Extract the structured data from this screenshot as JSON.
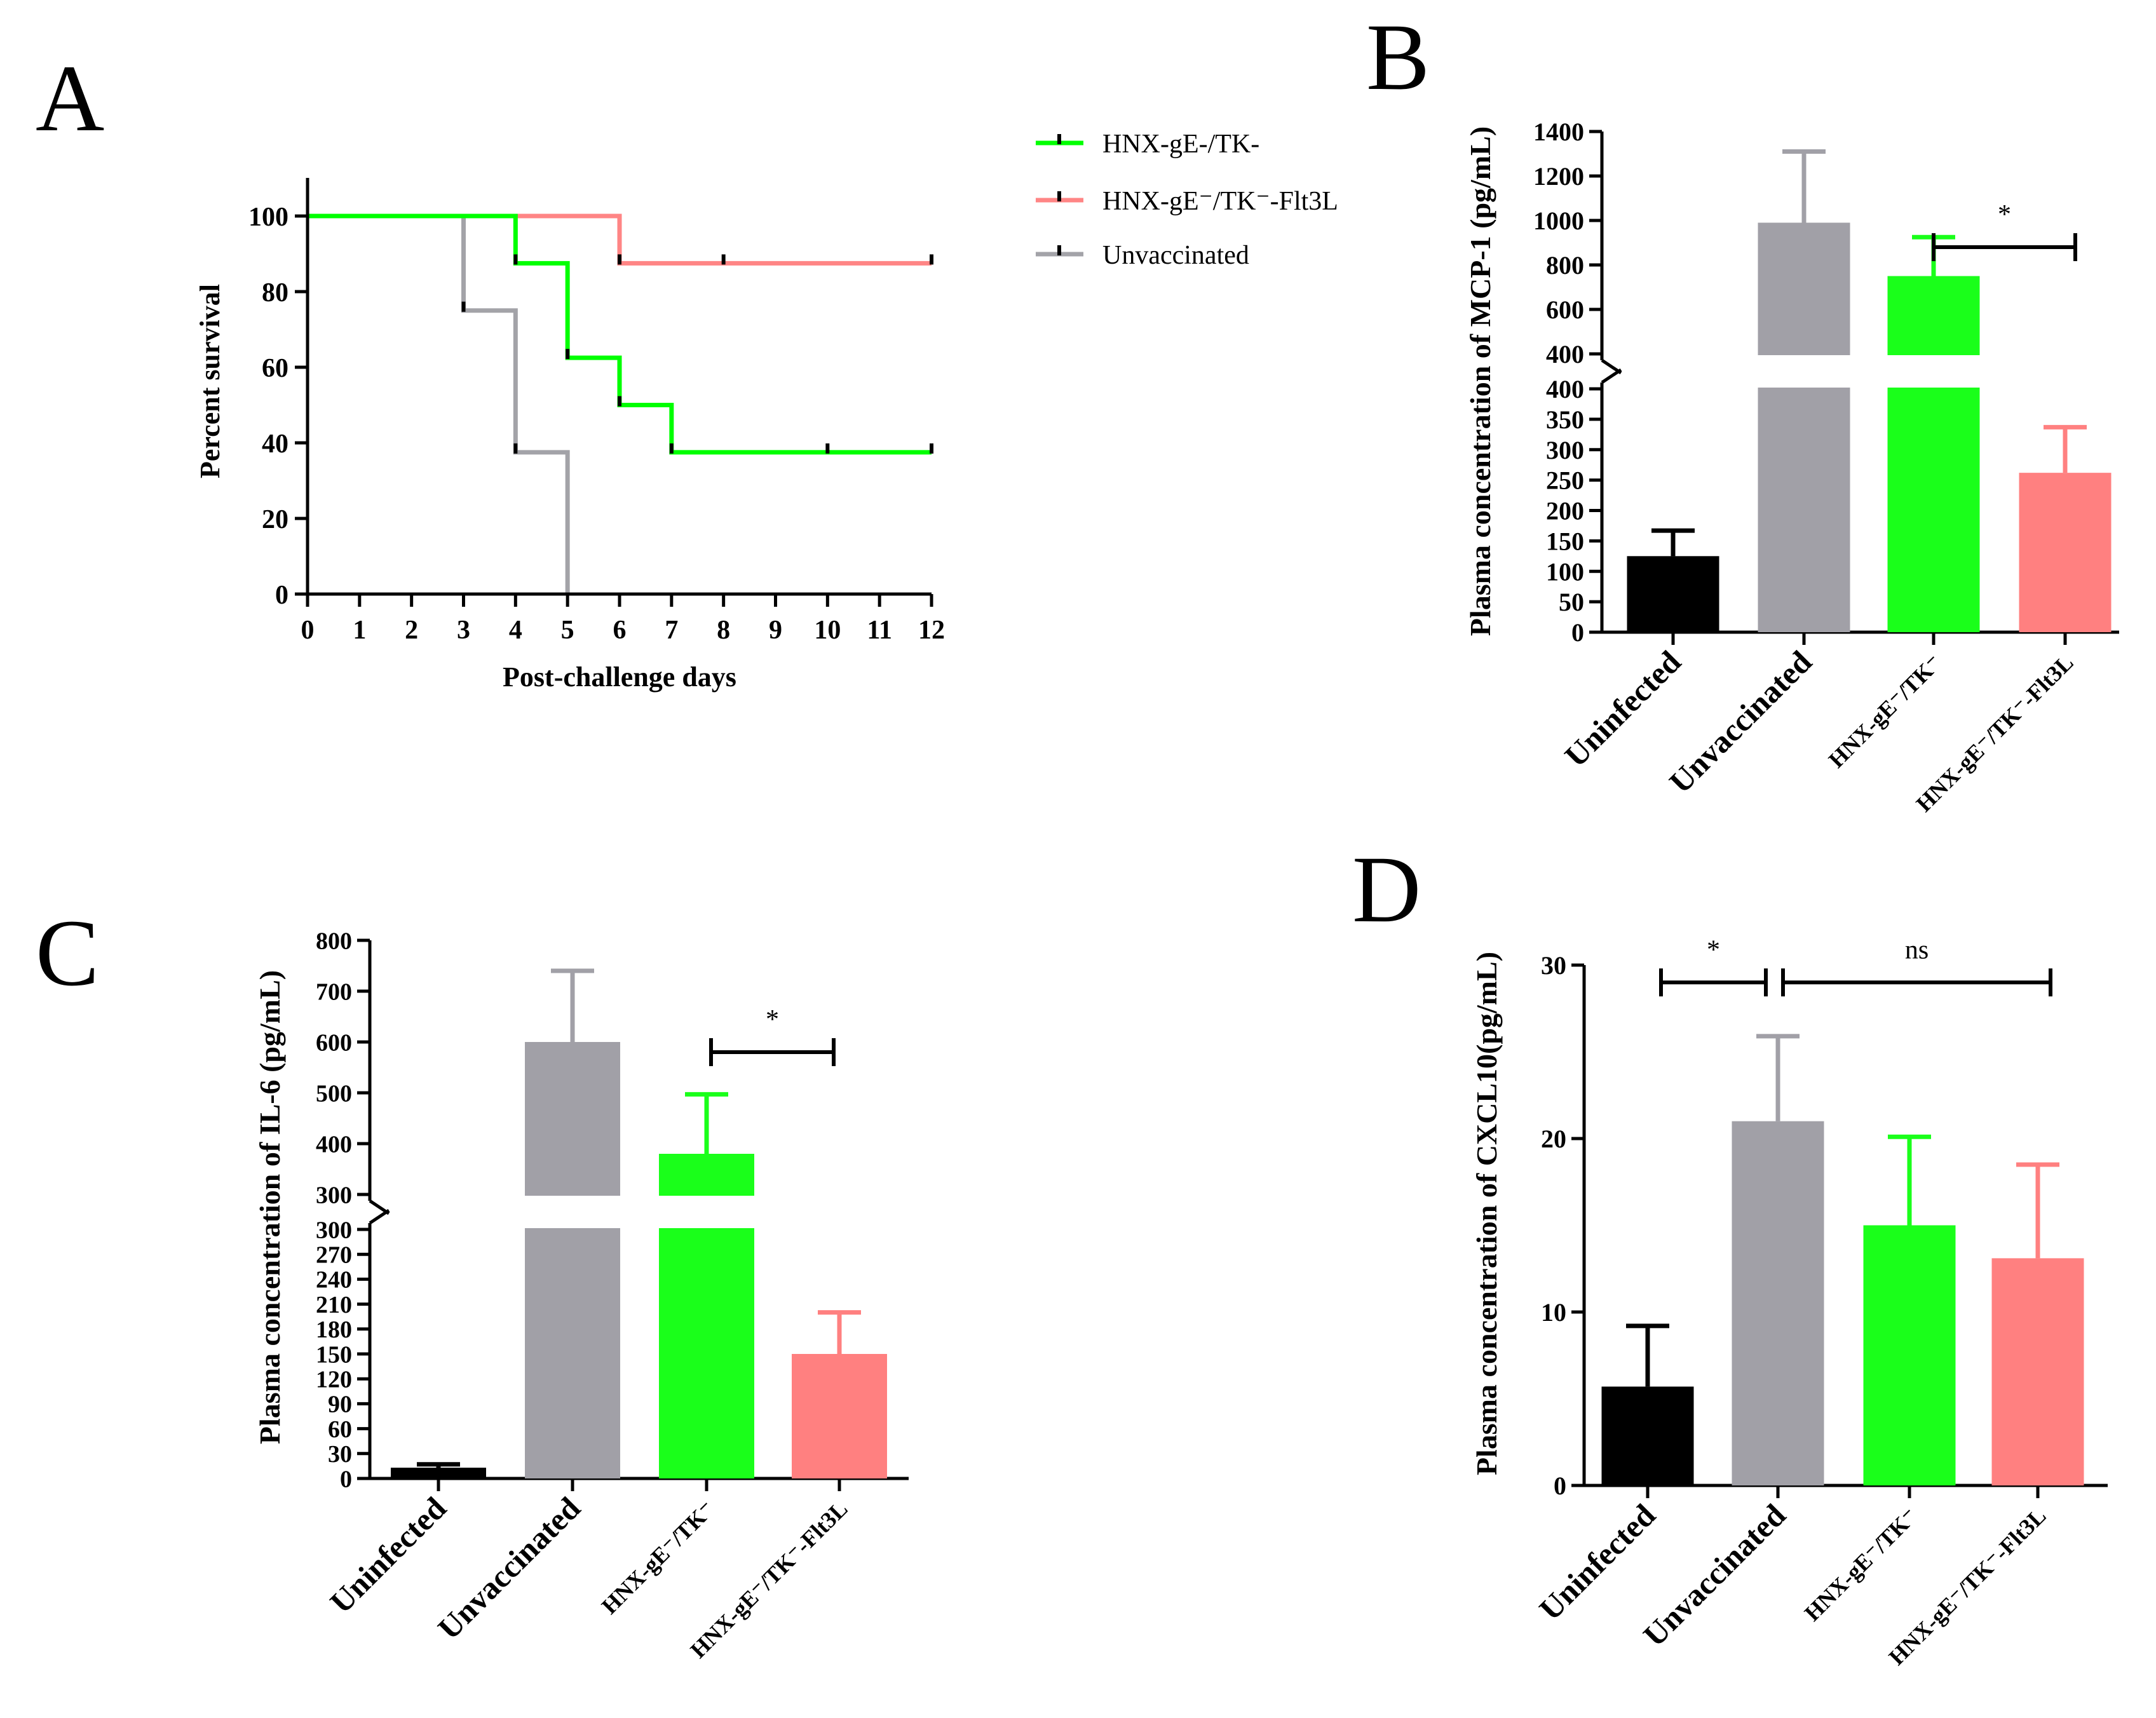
{
  "panels": {
    "A": {
      "letter": "A"
    },
    "B": {
      "letter": "B"
    },
    "C": {
      "letter": "C"
    },
    "D": {
      "letter": "D"
    }
  },
  "colors": {
    "black": "#000000",
    "gray": "#a3a3a8",
    "green": "#00ff00",
    "salmon": "#ff8585",
    "bar_gray": "#a1a0a7",
    "bar_green": "#1aff1a",
    "bar_salmon": "#ff8080"
  },
  "chart_data": [
    {
      "id": "A",
      "type": "line",
      "title": "",
      "xlabel": "Post-challenge days",
      "ylabel": "Percent survival",
      "xlim": [
        0,
        12
      ],
      "ylim": [
        0,
        110
      ],
      "xticks": [
        0,
        1,
        2,
        3,
        4,
        5,
        6,
        7,
        8,
        9,
        10,
        11,
        12
      ],
      "xtick_labels": [
        "0",
        "1",
        "2",
        "3",
        "4",
        "5",
        "6",
        "7",
        "8",
        "9",
        "10",
        "11",
        "12"
      ],
      "yticks": [
        0,
        20,
        40,
        60,
        80,
        100
      ],
      "ytick_labels": [
        "0",
        "20",
        "40",
        "60",
        "80",
        "100"
      ],
      "legend": {
        "placement": "top-right"
      },
      "series": [
        {
          "name": "HNX-gE-/TK-",
          "color": "#00ff00",
          "steps": [
            [
              0,
              100
            ],
            [
              4,
              87.5
            ],
            [
              5,
              62.5
            ],
            [
              6,
              50
            ],
            [
              7,
              37.5
            ]
          ],
          "end": 12,
          "censored": [
            [
              4,
              87.5
            ],
            [
              5,
              62.5
            ],
            [
              6,
              50
            ],
            [
              7,
              37.5
            ],
            [
              10,
              37.5
            ],
            [
              12,
              37.5
            ]
          ]
        },
        {
          "name": "HNX-gE⁻/TK⁻-Flt3L",
          "color": "#ff8585",
          "steps": [
            [
              0,
              100
            ],
            [
              6,
              87.5
            ]
          ],
          "end": 12,
          "censored": [
            [
              6,
              87.5
            ],
            [
              8,
              87.5
            ],
            [
              12,
              87.5
            ]
          ]
        },
        {
          "name": "Unvaccinated",
          "color": "#a3a3a8",
          "steps": [
            [
              0,
              100
            ],
            [
              3,
              75
            ],
            [
              4,
              37.5
            ],
            [
              5,
              0
            ]
          ],
          "end": 5,
          "censored": [
            [
              3,
              75
            ],
            [
              4,
              37.5
            ]
          ]
        }
      ]
    },
    {
      "id": "B",
      "type": "bar",
      "ylabel": "Plasma concentration of MCP-1 (pg/mL)",
      "categories": [
        "Uninfected",
        "Unvaccinated",
        "HNX-gE⁻/TK⁻",
        "HNX-gE⁻/TK⁻-Flt3L"
      ],
      "values": [
        125,
        990,
        750,
        262
      ],
      "errors": [
        42,
        320,
        175,
        75
      ],
      "colors": [
        "#000000",
        "#a1a0a7",
        "#1aff1a",
        "#ff8080"
      ],
      "broken_axis": {
        "lower": {
          "range": [
            0,
            400
          ],
          "ticks": [
            0,
            50,
            100,
            150,
            200,
            250,
            300,
            350,
            400
          ],
          "tick_labels": [
            "0",
            "50",
            "100",
            "150",
            "200",
            "250",
            "300",
            "350",
            "400"
          ]
        },
        "upper": {
          "range": [
            400,
            1400
          ],
          "ticks": [
            400,
            600,
            800,
            1000,
            1200,
            1400
          ],
          "tick_labels": [
            "400",
            "600",
            "800",
            "1000",
            "1200",
            "1400"
          ]
        }
      },
      "annotations": [
        {
          "label": "*",
          "from_category": 2,
          "to_category": 3,
          "y": 880
        }
      ]
    },
    {
      "id": "C",
      "type": "bar",
      "ylabel": "Plasma concentration of IL-6 (pg/mL)",
      "categories": [
        "Uninfected",
        "Unvaccinated",
        "HNX-gE⁻/TK⁻",
        "HNX-gE⁻/TK⁻-Flt3L"
      ],
      "values": [
        13,
        600,
        380,
        150
      ],
      "errors": [
        4,
        140,
        117,
        50
      ],
      "colors": [
        "#000000",
        "#a1a0a7",
        "#1aff1a",
        "#ff8080"
      ],
      "broken_axis": {
        "lower": {
          "range": [
            0,
            300
          ],
          "ticks": [
            0,
            30,
            60,
            90,
            120,
            150,
            180,
            210,
            240,
            270,
            300
          ],
          "tick_labels": [
            "0",
            "30",
            "60",
            "90",
            "120",
            "150",
            "180",
            "210",
            "240",
            "270",
            "300"
          ]
        },
        "upper": {
          "range": [
            300,
            800
          ],
          "ticks": [
            300,
            400,
            500,
            600,
            700,
            800
          ],
          "tick_labels": [
            "300",
            "400",
            "500",
            "600",
            "700",
            "800"
          ]
        }
      },
      "annotations": [
        {
          "label": "*",
          "from_category": 2,
          "to_category": 3,
          "y": 580
        }
      ]
    },
    {
      "id": "D",
      "type": "bar",
      "ylabel": "Plasma concentration of CXCL10(pg/mL)",
      "categories": [
        "Uninfected",
        "Unvaccinated",
        "HNX-gE⁻/TK⁻",
        "HNX-gE⁻/TK⁻-Flt3L"
      ],
      "values": [
        5.7,
        21,
        15,
        13.1
      ],
      "errors": [
        3.5,
        4.9,
        5.1,
        5.4
      ],
      "colors": [
        "#000000",
        "#a1a0a7",
        "#1aff1a",
        "#ff8080"
      ],
      "ylim": [
        0,
        30
      ],
      "yticks": [
        0,
        10,
        20,
        30
      ],
      "ytick_labels": [
        "0",
        "10",
        "20",
        "30"
      ],
      "annotations": [
        {
          "label": "*",
          "from_category": 0,
          "to_category": 1,
          "y": 29
        },
        {
          "label": "ns",
          "from_category": 1,
          "to_category": 3,
          "y": 29
        }
      ]
    }
  ]
}
